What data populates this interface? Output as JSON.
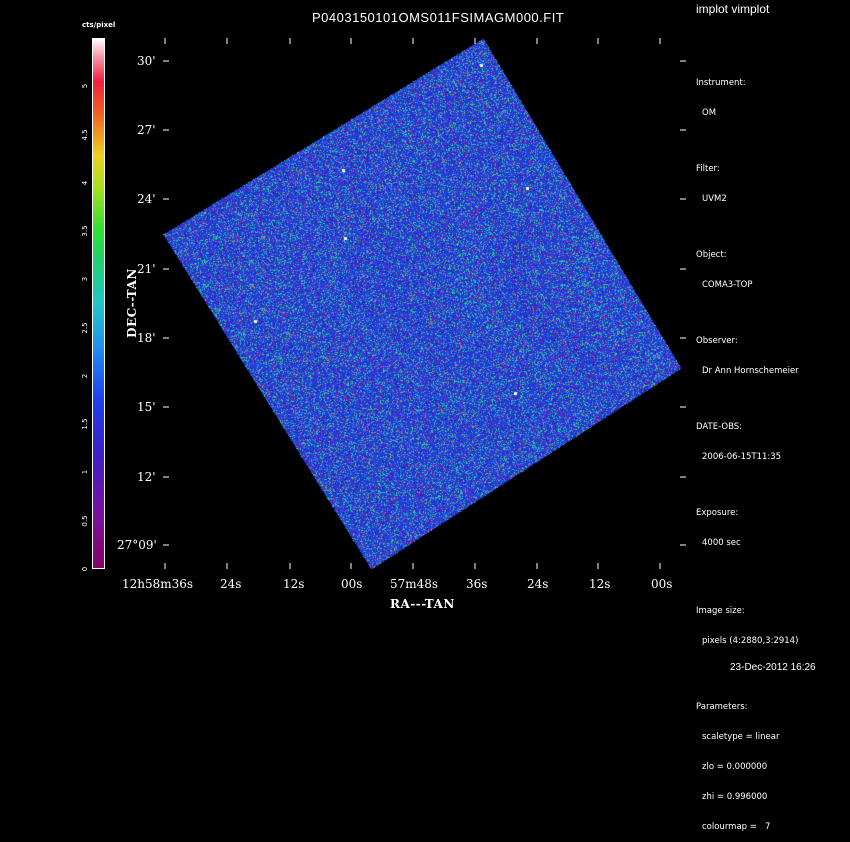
{
  "header": {
    "title": "P0403150101OMS011FSIMAGM000.FIT",
    "program": "implot vimplot",
    "date": "23-Dec-2012 16:26"
  },
  "colorbar": {
    "unit_label": "cts/pixel",
    "ticks": [
      "0",
      "0.5",
      "1",
      "1.5",
      "2",
      "2.5",
      "3",
      "3.5",
      "4",
      "4.5",
      "5"
    ],
    "range": [
      0,
      5.5
    ]
  },
  "axes": {
    "xlabel": "RA---TAN",
    "ylabel": "DEC--TAN",
    "x_ticks": [
      "12h58m36s",
      "24s",
      "12s",
      "00s",
      "57m48s",
      "36s",
      "24s",
      "12s",
      "00s"
    ],
    "y_ticks": [
      "30'",
      "27'",
      "24'",
      "21'",
      "18'",
      "15'",
      "12'",
      "27°09'"
    ]
  },
  "info": {
    "instrument_label": "Instrument:",
    "instrument": "OM",
    "filter_label": "Filter:",
    "filter": "UVM2",
    "object_label": "Object:",
    "object": "COMA3-TOP",
    "observer_label": "Observer:",
    "observer": "Dr Ann Hornschemeier",
    "date_obs_label": "DATE-OBS:",
    "date_obs": "2006-06-15T11:35",
    "exposure_label": "Exposure:",
    "exposure": "4000 sec",
    "image_size_label": "Image size:",
    "image_size": "pixels (4:2880,3:2914)",
    "parameters_label": "Parameters:",
    "scaletype": "scaletype = linear",
    "zlo": "zlo = 0.000000",
    "zhi": "zhi = 0.996000",
    "colourmap": "colourmap =   7"
  },
  "colors": {
    "background": "#000000",
    "image_base": "#1f4ad8",
    "noise_green": "#30d0a0",
    "noise_purple": "#6a18c8",
    "text": "#ffffff"
  }
}
